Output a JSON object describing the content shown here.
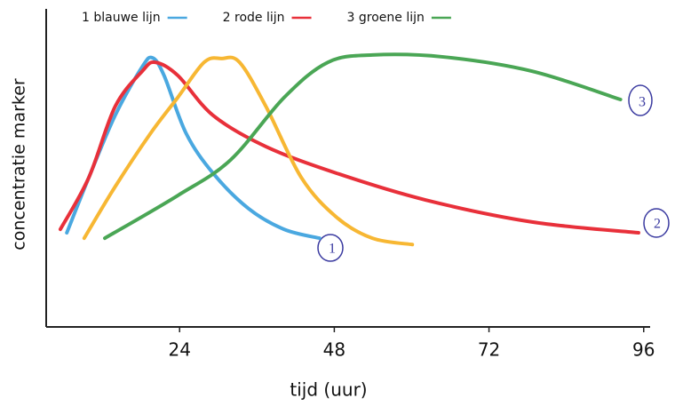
{
  "chart_data": {
    "type": "line",
    "x_label": "tijd (uur)",
    "y_label": "concentratie marker",
    "xlim": [
      3.3,
      97
    ],
    "xticks": [
      24,
      48,
      72,
      96
    ],
    "ylim": [
      0,
      100
    ],
    "grid": false,
    "legend": "top",
    "series": [
      {
        "name": "1 blauwe lijn",
        "color": "#4aa8e0",
        "x": [
          6.5,
          9.9,
          14,
          18.2,
          19.8,
          21.6,
          25,
          29.2,
          34.7,
          40.2,
          45.7
        ],
        "values": [
          29.6,
          46.9,
          66.5,
          81.8,
          84.6,
          79,
          60.9,
          48.3,
          37.2,
          30.7,
          27.9
        ]
      },
      {
        "name": "2 rode lijn",
        "color": "#e8303a",
        "x": [
          5.5,
          9.9,
          14,
          18.2,
          20.2,
          23.7,
          29.2,
          37.4,
          48.4,
          62.2,
          78.7,
          95.2
        ],
        "values": [
          30.7,
          46.9,
          69.3,
          80.4,
          83.2,
          79.1,
          66.5,
          56.7,
          48.3,
          39.9,
          33,
          29.6
        ]
      },
      {
        "color": "#f7b733",
        "x": [
          9.2,
          14,
          19.5,
          23.7,
          27.8,
          30.5,
          33.3,
          37.4,
          42.9,
          48.4,
          53.9,
          60.1
        ],
        "values": [
          27.9,
          44.1,
          60.9,
          72.1,
          83.2,
          84.4,
          83.2,
          69.3,
          46.9,
          34.4,
          27.9,
          25.9
        ]
      },
      {
        "name": "3 groene lijn",
        "color": "#4aa655",
        "x": [
          12.4,
          23.7,
          31.9,
          40.2,
          47,
          53.9,
          64.9,
          78.7,
          92.4
        ],
        "values": [
          27.9,
          41.3,
          52.5,
          72.1,
          83.2,
          85.5,
          84.9,
          80.4,
          71.5
        ]
      }
    ],
    "annotations": [
      "1",
      "2",
      "3"
    ]
  }
}
